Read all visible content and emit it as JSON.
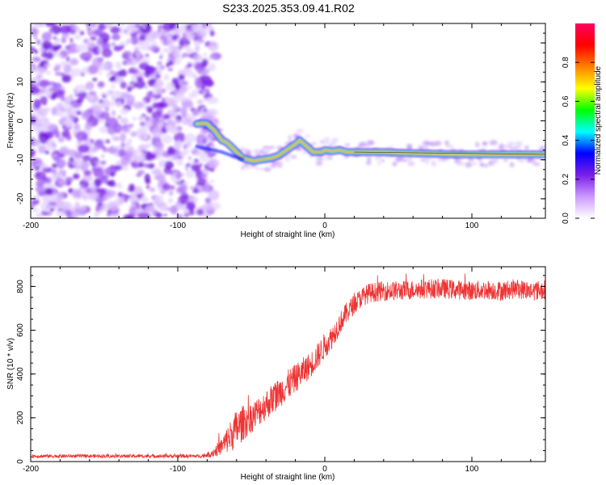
{
  "title": "S233.2025.353.09.41.R02",
  "chart_data": [
    {
      "type": "heatmap",
      "name": "spectrogram",
      "xlabel": "Height of straight line (km)",
      "ylabel": "Frequency (Hz)",
      "xlim": [
        -200,
        150
      ],
      "ylim": [
        -25,
        25
      ],
      "xticks": [
        -200,
        -100,
        0,
        100
      ],
      "yticks": [
        -20,
        -10,
        0,
        10,
        20
      ],
      "noise_region_x": [
        -200,
        -80
      ],
      "ridge": {
        "x": [
          -87,
          -83,
          -80,
          -78,
          -75,
          -72,
          -70,
          -67,
          -64,
          -60,
          -56,
          -52,
          -48,
          -44,
          -40,
          -36,
          -32,
          -28,
          -24,
          -20,
          -17,
          -14,
          -11,
          -8,
          -5,
          -2,
          0,
          5,
          10,
          15,
          20,
          30,
          40,
          50,
          60,
          70,
          80,
          90,
          100,
          110,
          120,
          130,
          140,
          150
        ],
        "y": [
          -0.8,
          -0.6,
          -0.7,
          -1.5,
          -2.5,
          -4,
          -5,
          -5.5,
          -6.5,
          -8,
          -9.5,
          -10,
          -10.3,
          -10,
          -9.8,
          -9.5,
          -9,
          -8,
          -7,
          -6,
          -5,
          -6,
          -7,
          -8,
          -8,
          -8,
          -7.5,
          -7.8,
          -7.5,
          -8,
          -8,
          -8,
          -8,
          -8.2,
          -8.3,
          -8.4,
          -8.5,
          -8.6,
          -8.6,
          -8.6,
          -8.6,
          -8.6,
          -8.6,
          -8.6
        ]
      },
      "colorbar": {
        "label": "Normalized spectral amplitude",
        "range": [
          0.0,
          1.0
        ],
        "ticks": [
          0.0,
          0.2,
          0.4,
          0.6,
          0.8
        ],
        "tick_labels": [
          "0.0",
          "0.2",
          "0.4",
          "0.6",
          "0.8"
        ],
        "colors": [
          "#ffffff",
          "#cc99ff",
          "#7a1ee8",
          "#0000ff",
          "#00ffff",
          "#00ff00",
          "#ffff00",
          "#ff8000",
          "#ff0000",
          "#ff0060"
        ]
      }
    },
    {
      "type": "line",
      "name": "snr",
      "xlabel": "Height of straight line (km)",
      "ylabel": "SNR (10 * v/v)",
      "xlim": [
        -200,
        150
      ],
      "ylim": [
        0,
        890
      ],
      "xticks": [
        -200,
        -100,
        0,
        100
      ],
      "yticks": [
        0,
        200,
        400,
        600,
        800
      ],
      "color": "#ee3333",
      "x": [
        -200,
        -150,
        -100,
        -85,
        -80,
        -75,
        -70,
        -65,
        -60,
        -55,
        -50,
        -45,
        -40,
        -35,
        -30,
        -25,
        -20,
        -15,
        -10,
        -5,
        0,
        5,
        10,
        15,
        20,
        25,
        30,
        40,
        50,
        60,
        70,
        80,
        90,
        100,
        110,
        120,
        130,
        140,
        150
      ],
      "y": [
        25,
        25,
        25,
        25,
        30,
        45,
        70,
        110,
        150,
        180,
        200,
        230,
        260,
        290,
        320,
        350,
        380,
        410,
        440,
        480,
        530,
        570,
        630,
        680,
        720,
        750,
        770,
        780,
        780,
        785,
        790,
        790,
        785,
        780,
        785,
        780,
        790,
        780,
        785
      ],
      "noise_amplitude": [
        8,
        8,
        8,
        8,
        12,
        25,
        40,
        70,
        90,
        80,
        70,
        70,
        70,
        70,
        70,
        70,
        65,
        65,
        60,
        60,
        60,
        55,
        50,
        50,
        45,
        45,
        45,
        45,
        45,
        45,
        45,
        45,
        45,
        45,
        45,
        45,
        45,
        45,
        45
      ]
    }
  ]
}
